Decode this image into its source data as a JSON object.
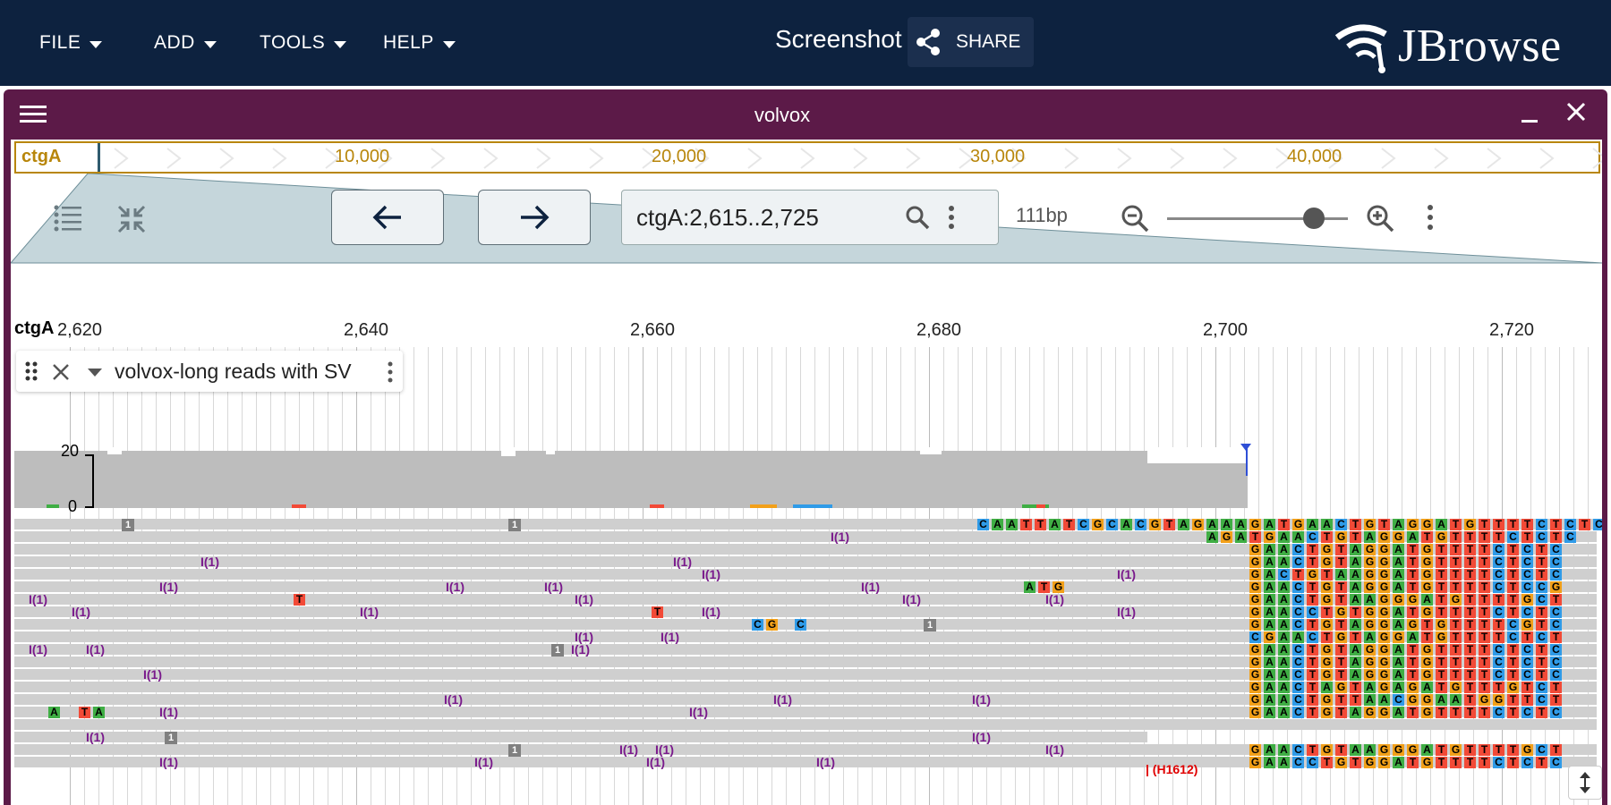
{
  "menubar": {
    "items": [
      {
        "label": "FILE"
      },
      {
        "label": "ADD"
      },
      {
        "label": "TOOLS"
      },
      {
        "label": "HELP"
      }
    ],
    "session_name": "Screenshot",
    "share_label": "SHARE",
    "logo_text": "JBrowse"
  },
  "view": {
    "title": "volvox",
    "overview": {
      "ref": "ctgA",
      "ticks": [
        "10,000",
        "20,000",
        "30,000",
        "40,000"
      ]
    },
    "location": "ctgA:2,615..2,725",
    "bp_label": "111bp",
    "zoom_level": 0.84,
    "ruler": {
      "ref": "ctgA",
      "ticks": [
        "2,620",
        "2,640",
        "2,660",
        "2,680",
        "2,700",
        "2,720"
      ]
    },
    "track": {
      "name": "volvox-long reads with SV",
      "coverage_max": "20",
      "coverage_min": "0"
    },
    "sv_label": "| (H1612)"
  },
  "colors": {
    "A": "#3fae44",
    "C": "#2f9be8",
    "G": "#f2a019",
    "T": "#f24a37",
    "insertion": "#7a1a8c",
    "topbar": "#0d223f",
    "view_header": "#5c1a48"
  }
}
